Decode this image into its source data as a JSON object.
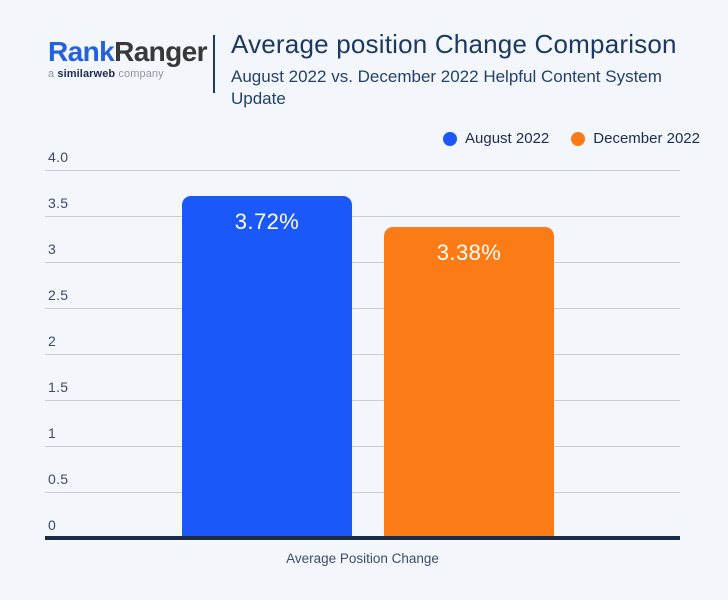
{
  "logo": {
    "word_part1": "Rank",
    "word_part2": "Ranger",
    "tagline_a": "a",
    "tagline_brand": "similarweb",
    "tagline_rest": "company"
  },
  "header": {
    "title": "Average position Change Comparison",
    "subtitle": "August 2022 vs. December 2022 Helpful Content System Update"
  },
  "colors": {
    "background": "#f3f6fb",
    "august_blue": "#1b58fa",
    "december_orange": "#fb7b17",
    "logo_blue": "#2560dd",
    "title_navy": "#1c3962",
    "gridline": "#c8ccd8",
    "axis_baseline": "#1b2b45",
    "value_label": "#ffffff"
  },
  "chart_data": {
    "type": "bar",
    "title": "Average position Change Comparison",
    "subtitle": "August 2022 vs. December 2022 Helpful Content System Update",
    "xlabel": "Average Position Change",
    "categories": [
      "Average Position Change"
    ],
    "series": [
      {
        "name": "August 2022",
        "value": 3.72,
        "label": "3.72%",
        "color": "#1b58fa"
      },
      {
        "name": "December 2022",
        "value": 3.38,
        "label": "3.38%",
        "color": "#fb7b17"
      }
    ],
    "ylim": [
      0,
      4.0
    ],
    "yticks": [
      {
        "value": 4.0,
        "label": "4.0"
      },
      {
        "value": 3.5,
        "label": "3.5"
      },
      {
        "value": 3.0,
        "label": "3"
      },
      {
        "value": 2.5,
        "label": "2.5"
      },
      {
        "value": 2.0,
        "label": "2"
      },
      {
        "value": 1.5,
        "label": "1.5"
      },
      {
        "value": 1.0,
        "label": "1"
      },
      {
        "value": 0.5,
        "label": "0.5"
      },
      {
        "value": 0.0,
        "label": "0"
      }
    ],
    "grid": true,
    "legend_position": "top-right"
  }
}
